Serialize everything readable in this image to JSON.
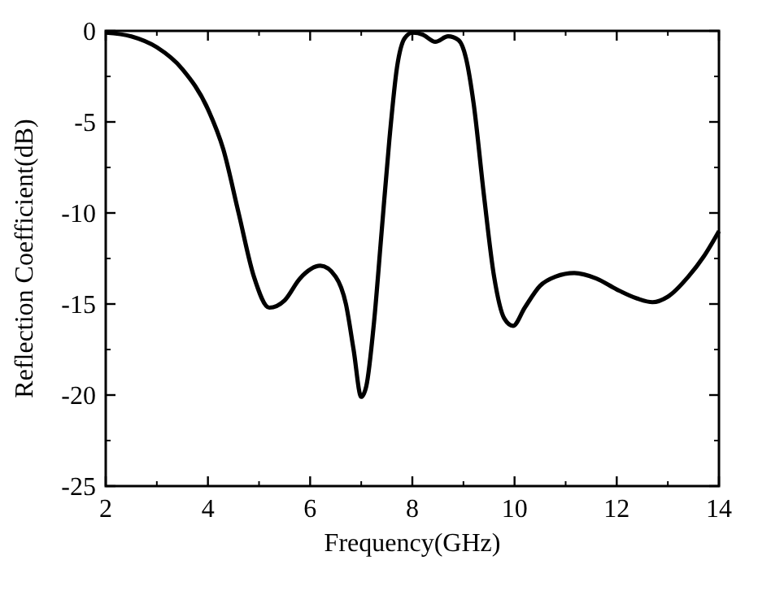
{
  "chart_data": {
    "type": "line",
    "xlabel": "Frequency(GHz)",
    "ylabel": "Reflection Coefficient(dB)",
    "xlim": [
      2,
      14
    ],
    "xticks": [
      2,
      4,
      6,
      8,
      10,
      12,
      14
    ],
    "ylim": [
      -25,
      0
    ],
    "yticks": [
      -25,
      -20,
      -15,
      -10,
      -5,
      0
    ],
    "grid": false,
    "marker": "none",
    "line_style": "solid",
    "series": [
      {
        "color": "#000000",
        "x": [
          2,
          2.5,
          3,
          3.5,
          4,
          4.3,
          4.6,
          4.9,
          5.2,
          5.5,
          5.8,
          6.2,
          6.5,
          6.7,
          6.85,
          7.0,
          7.1,
          7.25,
          7.4,
          7.55,
          7.7,
          7.85,
          8.0,
          8.2,
          8.45,
          8.7,
          8.9,
          9.05,
          9.2,
          9.4,
          9.6,
          9.8,
          9.97,
          10.2,
          10.5,
          10.8,
          11.17,
          11.6,
          12.0,
          12.4,
          12.7,
          13.0,
          13.4,
          13.7,
          14
        ],
        "values": [
          -0.1,
          -0.3,
          -0.9,
          -2.1,
          -4.3,
          -6.5,
          -10,
          -13.5,
          -15.2,
          -14.8,
          -13.6,
          -12.9,
          -13.5,
          -15,
          -17.5,
          -20.1,
          -19.5,
          -16,
          -11,
          -6,
          -2,
          -0.4,
          -0.1,
          -0.2,
          -0.6,
          -0.3,
          -0.5,
          -1.5,
          -4,
          -9,
          -13.5,
          -15.8,
          -16.2,
          -15.2,
          -14,
          -13.5,
          -13.3,
          -13.6,
          -14.2,
          -14.7,
          -14.9,
          -14.6,
          -13.5,
          -12.4,
          -11
        ]
      }
    ]
  }
}
